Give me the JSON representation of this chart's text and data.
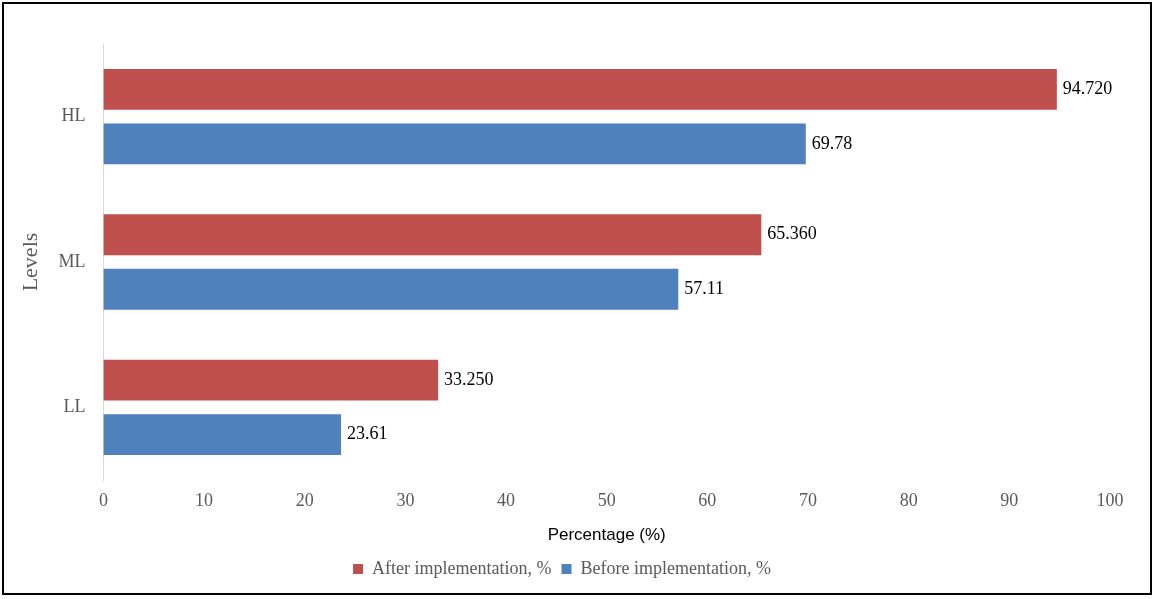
{
  "chart_data": {
    "type": "bar",
    "orientation": "horizontal",
    "categories": [
      "HL",
      "ML",
      "LL"
    ],
    "xlabel": "Percentage (%)",
    "ylabel": "Levels",
    "series": [
      {
        "name": "After implementation, %",
        "color": "#c0504d",
        "values": [
          94.72,
          65.36,
          33.25
        ],
        "value_labels": [
          "94.720",
          "65.360",
          "33.250"
        ]
      },
      {
        "name": "Before implementation, %",
        "color": "#4f81bd",
        "values": [
          69.78,
          57.11,
          23.61
        ],
        "value_labels": [
          "69.78",
          "57.11",
          "23.61"
        ]
      }
    ],
    "xlim": [
      0,
      100
    ],
    "xticks": [
      0,
      10,
      20,
      30,
      40,
      50,
      60,
      70,
      80,
      90,
      100
    ],
    "grid": false,
    "legend": "bottom"
  }
}
